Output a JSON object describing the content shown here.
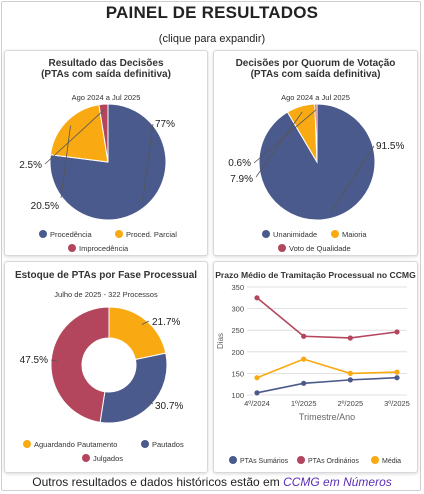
{
  "header": {
    "title": "PAINEL DE RESULTADOS",
    "subtitle": "(clique para expandir)"
  },
  "footer": {
    "text": "Outros resultados e dados históricos estão em",
    "link": "CCMG em Números"
  },
  "colors": {
    "blue": "#4b5a8c",
    "orange": "#f9aa13",
    "red": "#b3465c"
  },
  "chart_data": [
    {
      "type": "pie",
      "title": "Resultado das Decisões",
      "title2": "(PTAs com saída definitiva)",
      "subtitle": "Ago 2024 a Jul 2025",
      "labels": [
        "Procedência",
        "Proced. Parcial",
        "Improcedência"
      ],
      "values": [
        77,
        20.5,
        2.5
      ],
      "value_labels": [
        "77%",
        "20.5%",
        "2.5%"
      ],
      "colors": [
        "#4b5a8c",
        "#f9aa13",
        "#b3465c"
      ],
      "legend": "bottom"
    },
    {
      "type": "pie",
      "title": "Decisões por Quorum de Votação",
      "title2": "(PTAs com saída definitiva)",
      "subtitle": "Ago 2024 a Jul 2025",
      "labels": [
        "Unanimidade",
        "Maioria",
        "Voto de Qualidade"
      ],
      "values": [
        91.5,
        7.9,
        0.6
      ],
      "value_labels": [
        "91.5%",
        "7.9%",
        "0.6%"
      ],
      "colors": [
        "#4b5a8c",
        "#f9aa13",
        "#b3465c"
      ],
      "legend": "bottom"
    },
    {
      "type": "pie",
      "donut": true,
      "title": "Estoque de PTAs por Fase Processual",
      "subtitle": "Julho de 2025 - 322 Processos",
      "labels": [
        "Aguardando Pautamento",
        "Pautados",
        "Julgados"
      ],
      "values": [
        21.7,
        30.7,
        47.5
      ],
      "value_labels": [
        "21.7%",
        "30.7%",
        "47.5%"
      ],
      "colors": [
        "#f9aa13",
        "#4b5a8c",
        "#b3465c"
      ],
      "legend": "bottom"
    },
    {
      "type": "line",
      "title": "Prazo Médio de Tramitação Processual no CCMG",
      "categories": [
        "4º/2024",
        "1º/2025",
        "2º/2025",
        "3º/2025"
      ],
      "series": [
        {
          "name": "PTAs Sumários",
          "values": [
            105,
            127,
            135,
            140
          ],
          "color": "#4b5a8c"
        },
        {
          "name": "PTAs Ordinários",
          "values": [
            325,
            236,
            232,
            246
          ],
          "color": "#b3465c"
        },
        {
          "name": "Média",
          "values": [
            140,
            183,
            150,
            153
          ],
          "color": "#f9aa13"
        }
      ],
      "xlabel": "Trimestre/Ano",
      "ylabel": "Dias",
      "ylim": [
        100,
        350
      ],
      "yticks": [
        "100",
        "150",
        "200",
        "250",
        "300",
        "350"
      ],
      "grid": true,
      "legend": "bottom"
    }
  ]
}
